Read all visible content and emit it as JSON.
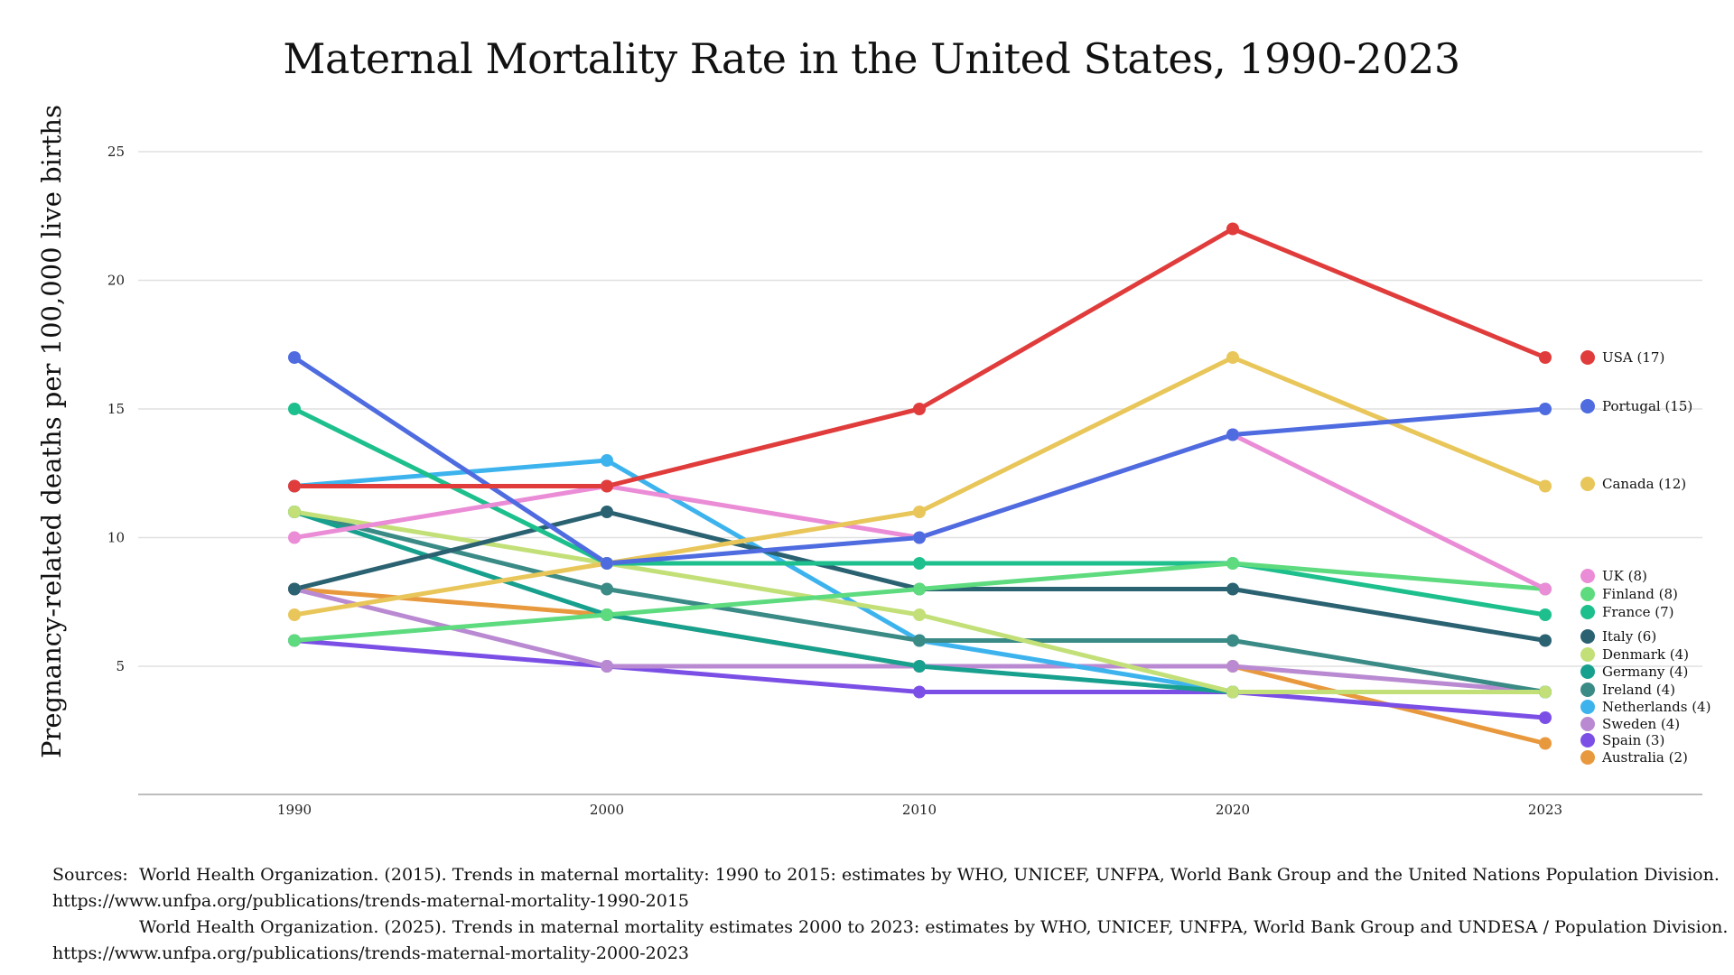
{
  "chart_data": {
    "type": "line",
    "title": "Maternal Mortality Rate in the United States, 1990-2023",
    "xlabel": "",
    "ylabel": "Pregnancy-related deaths per 100,000 live births",
    "x": [
      "1990",
      "2000",
      "2010",
      "2020",
      "2023"
    ],
    "ylim": [
      0,
      25
    ],
    "yticks": [
      5,
      10,
      15,
      20,
      25
    ],
    "grid": true,
    "legend_placement": "right (end-of-line labels)",
    "series": [
      {
        "name": "USA",
        "label": "USA (17)",
        "color": "#E03C3C",
        "values": [
          12,
          12,
          15,
          22,
          17
        ]
      },
      {
        "name": "Portugal",
        "label": "Portugal (15)",
        "color": "#4E6BE0",
        "values": [
          17,
          9,
          10,
          14,
          15
        ]
      },
      {
        "name": "Canada",
        "label": "Canada (12)",
        "color": "#E8C65A",
        "values": [
          7,
          9,
          11,
          17,
          12
        ]
      },
      {
        "name": "UK",
        "label": "UK (8)",
        "color": "#EA8CD6",
        "values": [
          10,
          12,
          10,
          14,
          8
        ]
      },
      {
        "name": "Finland",
        "label": "Finland (8)",
        "color": "#5EDB7E",
        "values": [
          6,
          7,
          8,
          9,
          8
        ]
      },
      {
        "name": "France",
        "label": "France (7)",
        "color": "#1DBF8C",
        "values": [
          15,
          9,
          9,
          9,
          7
        ]
      },
      {
        "name": "Italy",
        "label": "Italy (6)",
        "color": "#2A6272",
        "values": [
          8,
          11,
          8,
          8,
          6
        ]
      },
      {
        "name": "Denmark",
        "label": "Denmark (4)",
        "color": "#C2E077",
        "values": [
          11,
          9,
          7,
          4,
          4
        ]
      },
      {
        "name": "Germany",
        "label": "Germany (4)",
        "color": "#17A08E",
        "values": [
          11,
          7,
          5,
          4,
          4
        ]
      },
      {
        "name": "Ireland",
        "label": "Ireland (4)",
        "color": "#3A8A86",
        "values": [
          11,
          8,
          6,
          6,
          4
        ]
      },
      {
        "name": "Netherlands",
        "label": "Netherlands (4)",
        "color": "#3DB3EE",
        "values": [
          12,
          13,
          6,
          4,
          4
        ]
      },
      {
        "name": "Sweden",
        "label": "Sweden (4)",
        "color": "#B98AD2",
        "values": [
          8,
          5,
          5,
          5,
          4
        ]
      },
      {
        "name": "Spain",
        "label": "Spain (3)",
        "color": "#7B4FE6",
        "values": [
          6,
          5,
          4,
          4,
          3
        ]
      },
      {
        "name": "Australia",
        "label": "Australia (2)",
        "color": "#E8993E",
        "values": [
          8,
          7,
          5,
          5,
          2
        ]
      }
    ]
  },
  "sources": {
    "label": "Sources:",
    "lines": [
      "World Health Organization. (2015). Trends in maternal mortality: 1990 to 2015: estimates by WHO, UNICEF, UNFPA, World Bank Group and the United Nations Population Division.",
      "https://www.unfpa.org/publications/trends-maternal-mortality-1990-2015",
      "World Health Organization. (2025). Trends in maternal mortality estimates 2000 to 2023: estimates by WHO, UNICEF, UNFPA, World Bank Group and UNDESA / Population Division.",
      "https://www.unfpa.org/publications/trends-maternal-mortality-2000-2023"
    ]
  }
}
